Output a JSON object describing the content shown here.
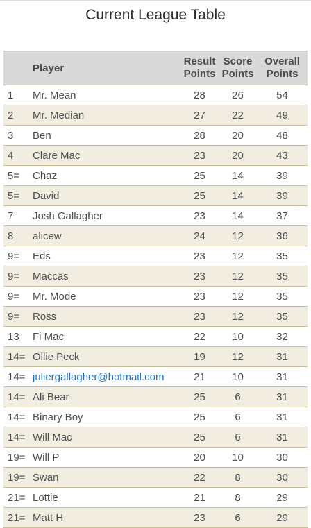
{
  "page": {
    "title": "Current League Table"
  },
  "table": {
    "headers": {
      "player": "Player",
      "result_line1": "Result",
      "result_line2": "Points",
      "score_line1": "Score",
      "score_line2": "Points",
      "overall_line1": "Overall",
      "overall_line2": "Points"
    },
    "rows": [
      {
        "rank": "1",
        "player": "Mr. Mean",
        "result": "28",
        "score": "26",
        "overall": "54"
      },
      {
        "rank": "2",
        "player": "Mr. Median",
        "result": "27",
        "score": "22",
        "overall": "49"
      },
      {
        "rank": "3",
        "player": "Ben",
        "result": "28",
        "score": "20",
        "overall": "48"
      },
      {
        "rank": "4",
        "player": "Clare Mac",
        "result": "23",
        "score": "20",
        "overall": "43"
      },
      {
        "rank": "5=",
        "player": "Chaz",
        "result": "25",
        "score": "14",
        "overall": "39"
      },
      {
        "rank": "5=",
        "player": "David",
        "result": "25",
        "score": "14",
        "overall": "39"
      },
      {
        "rank": "7",
        "player": "Josh Gallagher",
        "result": "23",
        "score": "14",
        "overall": "37"
      },
      {
        "rank": "8",
        "player": "alicew",
        "result": "24",
        "score": "12",
        "overall": "36"
      },
      {
        "rank": "9=",
        "player": "Eds",
        "result": "23",
        "score": "12",
        "overall": "35"
      },
      {
        "rank": "9=",
        "player": "Maccas",
        "result": "23",
        "score": "12",
        "overall": "35"
      },
      {
        "rank": "9=",
        "player": "Mr. Mode",
        "result": "23",
        "score": "12",
        "overall": "35"
      },
      {
        "rank": "9=",
        "player": "Ross",
        "result": "23",
        "score": "12",
        "overall": "35"
      },
      {
        "rank": "13",
        "player": "Fi Mac",
        "result": "22",
        "score": "10",
        "overall": "32"
      },
      {
        "rank": "14=",
        "player": "Ollie Peck",
        "result": "19",
        "score": "12",
        "overall": "31"
      },
      {
        "rank": "14=",
        "player": "juliergallagher@hotmail.com",
        "result": "21",
        "score": "10",
        "overall": "31",
        "is_link": true
      },
      {
        "rank": "14=",
        "player": "Ali Bear",
        "result": "25",
        "score": "6",
        "overall": "31"
      },
      {
        "rank": "14=",
        "player": "Binary Boy",
        "result": "25",
        "score": "6",
        "overall": "31"
      },
      {
        "rank": "14=",
        "player": "Will Mac",
        "result": "25",
        "score": "6",
        "overall": "31"
      },
      {
        "rank": "19=",
        "player": "Will P",
        "result": "20",
        "score": "10",
        "overall": "30"
      },
      {
        "rank": "19=",
        "player": "Swan",
        "result": "22",
        "score": "8",
        "overall": "30"
      },
      {
        "rank": "21=",
        "player": "Lottie",
        "result": "21",
        "score": "8",
        "overall": "29"
      },
      {
        "rank": "21=",
        "player": "Matt H",
        "result": "23",
        "score": "6",
        "overall": "29"
      }
    ]
  },
  "colors": {
    "row_alt": "#f2ede1",
    "header_bg": "#d9d9d9",
    "link": "#1e73be"
  }
}
